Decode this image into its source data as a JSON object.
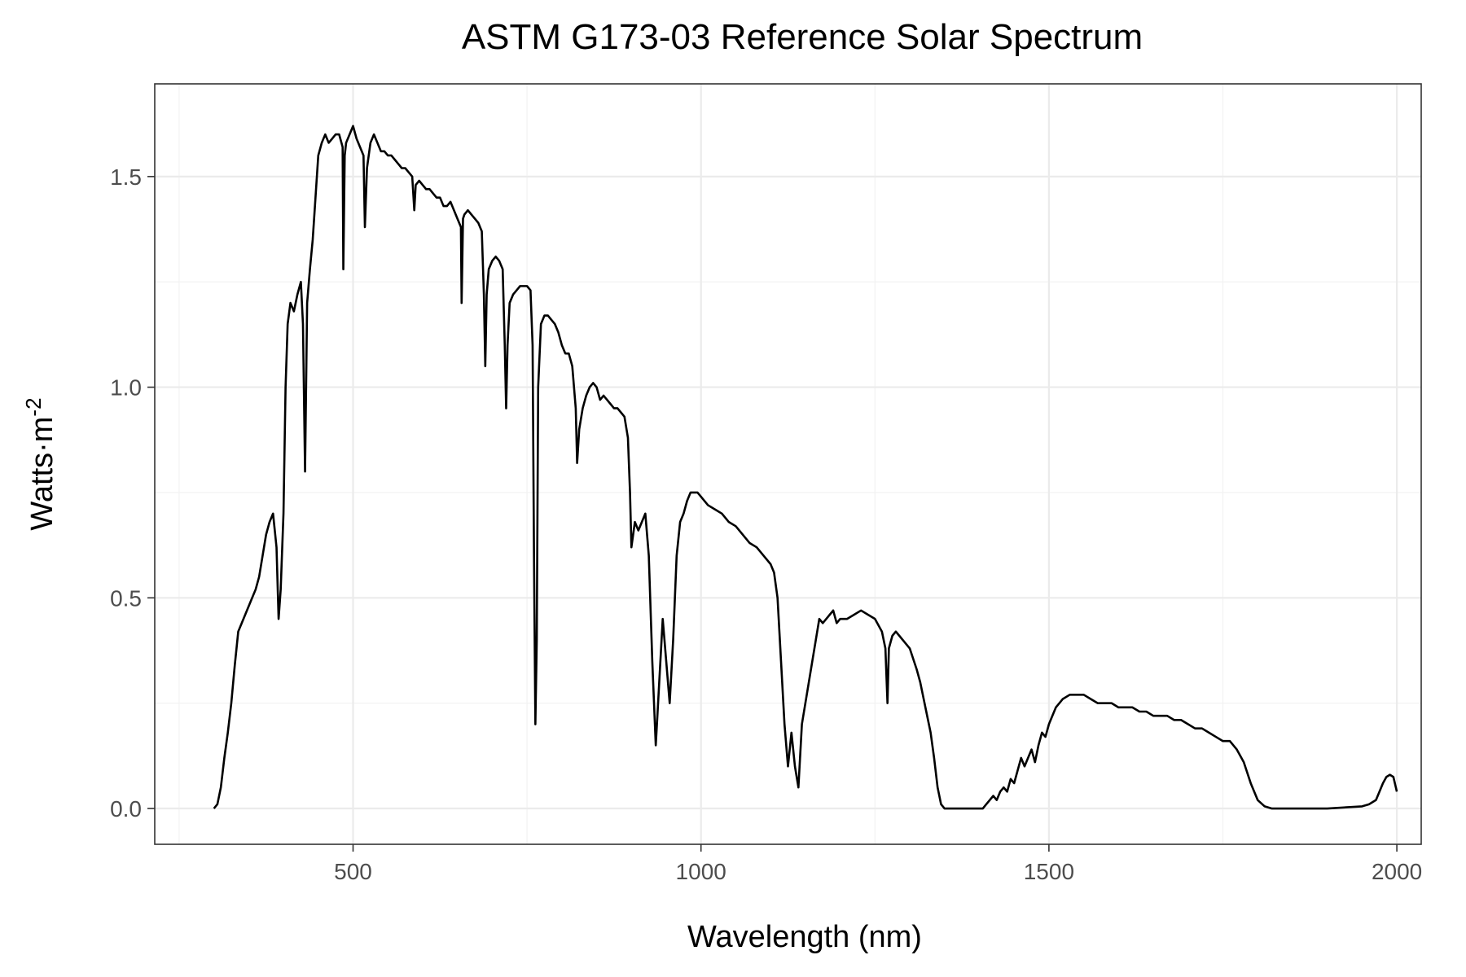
{
  "chart_data": {
    "type": "line",
    "title": "ASTM G173-03 Reference Solar Spectrum",
    "xlabel": "Wavelength (nm)",
    "ylabel": "Watts·m",
    "ylabel_superscript": "-2",
    "xlim": [
      215,
      2035
    ],
    "ylim": [
      -0.085,
      1.72
    ],
    "x_ticks": [
      500,
      1000,
      1500,
      2000
    ],
    "x_tick_labels": [
      "500",
      "1000",
      "1500",
      "2000"
    ],
    "x_minor_ticks": [
      250,
      750,
      1250,
      1750
    ],
    "y_ticks": [
      0.0,
      0.5,
      1.0,
      1.5
    ],
    "y_tick_labels": [
      "0.0",
      "0.5",
      "1.0",
      "1.5"
    ],
    "y_minor_ticks": [
      0.25,
      0.75,
      1.25
    ],
    "grid": true,
    "legend": "none",
    "line_color": "#000000",
    "series": [
      {
        "values": [
          [
            300,
            0.0
          ],
          [
            305,
            0.01
          ],
          [
            310,
            0.05
          ],
          [
            315,
            0.12
          ],
          [
            320,
            0.18
          ],
          [
            325,
            0.25
          ],
          [
            330,
            0.34
          ],
          [
            335,
            0.42
          ],
          [
            340,
            0.44
          ],
          [
            345,
            0.46
          ],
          [
            350,
            0.48
          ],
          [
            355,
            0.5
          ],
          [
            360,
            0.52
          ],
          [
            365,
            0.55
          ],
          [
            370,
            0.6
          ],
          [
            375,
            0.65
          ],
          [
            380,
            0.68
          ],
          [
            385,
            0.7
          ],
          [
            390,
            0.62
          ],
          [
            393,
            0.45
          ],
          [
            396,
            0.52
          ],
          [
            400,
            0.7
          ],
          [
            403,
            1.0
          ],
          [
            406,
            1.15
          ],
          [
            410,
            1.2
          ],
          [
            415,
            1.18
          ],
          [
            420,
            1.22
          ],
          [
            425,
            1.25
          ],
          [
            428,
            1.15
          ],
          [
            431,
            0.8
          ],
          [
            434,
            1.2
          ],
          [
            438,
            1.28
          ],
          [
            442,
            1.35
          ],
          [
            446,
            1.45
          ],
          [
            450,
            1.55
          ],
          [
            455,
            1.58
          ],
          [
            460,
            1.6
          ],
          [
            465,
            1.58
          ],
          [
            470,
            1.59
          ],
          [
            475,
            1.6
          ],
          [
            480,
            1.6
          ],
          [
            485,
            1.57
          ],
          [
            486,
            1.28
          ],
          [
            488,
            1.55
          ],
          [
            490,
            1.58
          ],
          [
            495,
            1.6
          ],
          [
            500,
            1.62
          ],
          [
            505,
            1.59
          ],
          [
            510,
            1.57
          ],
          [
            515,
            1.55
          ],
          [
            517,
            1.38
          ],
          [
            520,
            1.52
          ],
          [
            525,
            1.58
          ],
          [
            530,
            1.6
          ],
          [
            535,
            1.58
          ],
          [
            540,
            1.56
          ],
          [
            545,
            1.56
          ],
          [
            550,
            1.55
          ],
          [
            555,
            1.55
          ],
          [
            560,
            1.54
          ],
          [
            565,
            1.53
          ],
          [
            570,
            1.52
          ],
          [
            575,
            1.52
          ],
          [
            580,
            1.51
          ],
          [
            585,
            1.5
          ],
          [
            588,
            1.42
          ],
          [
            590,
            1.48
          ],
          [
            595,
            1.49
          ],
          [
            600,
            1.48
          ],
          [
            605,
            1.47
          ],
          [
            610,
            1.47
          ],
          [
            615,
            1.46
          ],
          [
            620,
            1.45
          ],
          [
            625,
            1.45
          ],
          [
            630,
            1.43
          ],
          [
            635,
            1.43
          ],
          [
            640,
            1.44
          ],
          [
            645,
            1.42
          ],
          [
            650,
            1.4
          ],
          [
            655,
            1.38
          ],
          [
            656,
            1.2
          ],
          [
            658,
            1.4
          ],
          [
            660,
            1.41
          ],
          [
            665,
            1.42
          ],
          [
            670,
            1.41
          ],
          [
            675,
            1.4
          ],
          [
            680,
            1.39
          ],
          [
            685,
            1.37
          ],
          [
            688,
            1.22
          ],
          [
            690,
            1.05
          ],
          [
            692,
            1.22
          ],
          [
            695,
            1.28
          ],
          [
            700,
            1.3
          ],
          [
            705,
            1.31
          ],
          [
            710,
            1.3
          ],
          [
            715,
            1.28
          ],
          [
            718,
            1.1
          ],
          [
            720,
            0.95
          ],
          [
            722,
            1.1
          ],
          [
            725,
            1.2
          ],
          [
            730,
            1.22
          ],
          [
            735,
            1.23
          ],
          [
            740,
            1.24
          ],
          [
            745,
            1.24
          ],
          [
            750,
            1.24
          ],
          [
            755,
            1.23
          ],
          [
            758,
            1.1
          ],
          [
            760,
            0.6
          ],
          [
            762,
            0.2
          ],
          [
            764,
            0.4
          ],
          [
            766,
            1.0
          ],
          [
            770,
            1.15
          ],
          [
            775,
            1.17
          ],
          [
            780,
            1.17
          ],
          [
            785,
            1.16
          ],
          [
            790,
            1.15
          ],
          [
            795,
            1.13
          ],
          [
            800,
            1.1
          ],
          [
            805,
            1.08
          ],
          [
            810,
            1.08
          ],
          [
            815,
            1.05
          ],
          [
            820,
            0.95
          ],
          [
            822,
            0.82
          ],
          [
            825,
            0.9
          ],
          [
            830,
            0.95
          ],
          [
            835,
            0.98
          ],
          [
            840,
            1.0
          ],
          [
            845,
            1.01
          ],
          [
            850,
            1.0
          ],
          [
            855,
            0.97
          ],
          [
            860,
            0.98
          ],
          [
            865,
            0.97
          ],
          [
            870,
            0.96
          ],
          [
            875,
            0.95
          ],
          [
            880,
            0.95
          ],
          [
            885,
            0.94
          ],
          [
            890,
            0.93
          ],
          [
            895,
            0.88
          ],
          [
            898,
            0.75
          ],
          [
            900,
            0.62
          ],
          [
            905,
            0.68
          ],
          [
            910,
            0.66
          ],
          [
            915,
            0.68
          ],
          [
            920,
            0.7
          ],
          [
            925,
            0.6
          ],
          [
            930,
            0.35
          ],
          [
            935,
            0.15
          ],
          [
            940,
            0.3
          ],
          [
            945,
            0.45
          ],
          [
            950,
            0.35
          ],
          [
            955,
            0.25
          ],
          [
            960,
            0.4
          ],
          [
            965,
            0.6
          ],
          [
            970,
            0.68
          ],
          [
            975,
            0.7
          ],
          [
            980,
            0.73
          ],
          [
            985,
            0.75
          ],
          [
            990,
            0.75
          ],
          [
            995,
            0.75
          ],
          [
            1000,
            0.74
          ],
          [
            1010,
            0.72
          ],
          [
            1020,
            0.71
          ],
          [
            1030,
            0.7
          ],
          [
            1040,
            0.68
          ],
          [
            1050,
            0.67
          ],
          [
            1060,
            0.65
          ],
          [
            1070,
            0.63
          ],
          [
            1080,
            0.62
          ],
          [
            1090,
            0.6
          ],
          [
            1100,
            0.58
          ],
          [
            1105,
            0.56
          ],
          [
            1110,
            0.5
          ],
          [
            1115,
            0.35
          ],
          [
            1120,
            0.2
          ],
          [
            1125,
            0.1
          ],
          [
            1130,
            0.18
          ],
          [
            1135,
            0.1
          ],
          [
            1140,
            0.05
          ],
          [
            1145,
            0.2
          ],
          [
            1150,
            0.25
          ],
          [
            1155,
            0.3
          ],
          [
            1160,
            0.35
          ],
          [
            1165,
            0.4
          ],
          [
            1170,
            0.45
          ],
          [
            1175,
            0.44
          ],
          [
            1180,
            0.45
          ],
          [
            1185,
            0.46
          ],
          [
            1190,
            0.47
          ],
          [
            1195,
            0.44
          ],
          [
            1200,
            0.45
          ],
          [
            1210,
            0.45
          ],
          [
            1220,
            0.46
          ],
          [
            1230,
            0.47
          ],
          [
            1240,
            0.46
          ],
          [
            1250,
            0.45
          ],
          [
            1260,
            0.42
          ],
          [
            1265,
            0.38
          ],
          [
            1268,
            0.25
          ],
          [
            1270,
            0.38
          ],
          [
            1275,
            0.41
          ],
          [
            1280,
            0.42
          ],
          [
            1285,
            0.41
          ],
          [
            1290,
            0.4
          ],
          [
            1300,
            0.38
          ],
          [
            1310,
            0.33
          ],
          [
            1315,
            0.3
          ],
          [
            1320,
            0.26
          ],
          [
            1325,
            0.22
          ],
          [
            1330,
            0.18
          ],
          [
            1335,
            0.12
          ],
          [
            1340,
            0.05
          ],
          [
            1345,
            0.01
          ],
          [
            1350,
            0.0
          ],
          [
            1400,
            0.0
          ],
          [
            1405,
            0.0
          ],
          [
            1410,
            0.01
          ],
          [
            1415,
            0.02
          ],
          [
            1420,
            0.03
          ],
          [
            1425,
            0.02
          ],
          [
            1430,
            0.04
          ],
          [
            1435,
            0.05
          ],
          [
            1440,
            0.04
          ],
          [
            1445,
            0.07
          ],
          [
            1450,
            0.06
          ],
          [
            1455,
            0.09
          ],
          [
            1460,
            0.12
          ],
          [
            1465,
            0.1
          ],
          [
            1470,
            0.12
          ],
          [
            1475,
            0.14
          ],
          [
            1480,
            0.11
          ],
          [
            1485,
            0.15
          ],
          [
            1490,
            0.18
          ],
          [
            1495,
            0.17
          ],
          [
            1500,
            0.2
          ],
          [
            1505,
            0.22
          ],
          [
            1510,
            0.24
          ],
          [
            1515,
            0.25
          ],
          [
            1520,
            0.26
          ],
          [
            1530,
            0.27
          ],
          [
            1540,
            0.27
          ],
          [
            1550,
            0.27
          ],
          [
            1560,
            0.26
          ],
          [
            1570,
            0.25
          ],
          [
            1580,
            0.25
          ],
          [
            1590,
            0.25
          ],
          [
            1600,
            0.24
          ],
          [
            1610,
            0.24
          ],
          [
            1620,
            0.24
          ],
          [
            1630,
            0.23
          ],
          [
            1640,
            0.23
          ],
          [
            1650,
            0.22
          ],
          [
            1660,
            0.22
          ],
          [
            1670,
            0.22
          ],
          [
            1680,
            0.21
          ],
          [
            1690,
            0.21
          ],
          [
            1700,
            0.2
          ],
          [
            1710,
            0.19
          ],
          [
            1720,
            0.19
          ],
          [
            1730,
            0.18
          ],
          [
            1740,
            0.17
          ],
          [
            1750,
            0.16
          ],
          [
            1760,
            0.16
          ],
          [
            1770,
            0.14
          ],
          [
            1780,
            0.11
          ],
          [
            1790,
            0.06
          ],
          [
            1800,
            0.02
          ],
          [
            1810,
            0.005
          ],
          [
            1820,
            0.0
          ],
          [
            1900,
            0.0
          ],
          [
            1950,
            0.005
          ],
          [
            1960,
            0.01
          ],
          [
            1970,
            0.02
          ],
          [
            1975,
            0.04
          ],
          [
            1980,
            0.06
          ],
          [
            1985,
            0.075
          ],
          [
            1990,
            0.08
          ],
          [
            1995,
            0.075
          ],
          [
            2000,
            0.04
          ]
        ]
      }
    ]
  }
}
